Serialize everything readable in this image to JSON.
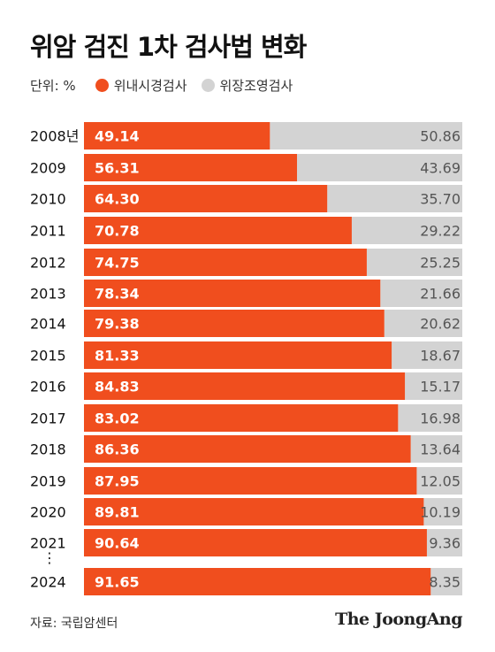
{
  "title": "위암 검진 1차 검사법 변화",
  "unit_label": "단위: %",
  "source": "자료: 국립암센터",
  "brand": "The JoongAng",
  "chart_data": {
    "type": "bar",
    "orientation": "horizontal",
    "stacked": true,
    "categories": [
      "2008년",
      "2009",
      "2010",
      "2011",
      "2012",
      "2013",
      "2014",
      "2015",
      "2016",
      "2017",
      "2018",
      "2019",
      "2020",
      "2021",
      "2024"
    ],
    "gap_marker": "⋮",
    "series": [
      {
        "name": "위내시경검사",
        "color": "#f04e1e",
        "values": [
          49.14,
          56.31,
          64.3,
          70.78,
          74.75,
          78.34,
          79.38,
          81.33,
          84.83,
          83.02,
          86.36,
          87.95,
          89.81,
          90.64,
          91.65
        ],
        "value_labels": [
          "49.14",
          "56.31",
          "64.30",
          "70.78",
          "74.75",
          "78.34",
          "79.38",
          "81.33",
          "84.83",
          "83.02",
          "86.36",
          "87.95",
          "89.81",
          "90.64",
          "91.65"
        ]
      },
      {
        "name": "위장조영검사",
        "color": "#d3d3d3",
        "values": [
          50.86,
          43.69,
          35.7,
          29.22,
          25.25,
          21.66,
          20.62,
          18.67,
          15.17,
          16.98,
          13.64,
          12.05,
          10.19,
          9.36,
          8.35
        ],
        "value_labels": [
          "50.86",
          "43.69",
          "35.70",
          "29.22",
          "25.25",
          "21.66",
          "20.62",
          "18.67",
          "15.17",
          "16.98",
          "13.64",
          "12.05",
          "10.19",
          "9.36",
          "8.35"
        ]
      }
    ],
    "xlim": [
      0,
      100
    ],
    "legend_position": "top-left",
    "grid": false
  }
}
